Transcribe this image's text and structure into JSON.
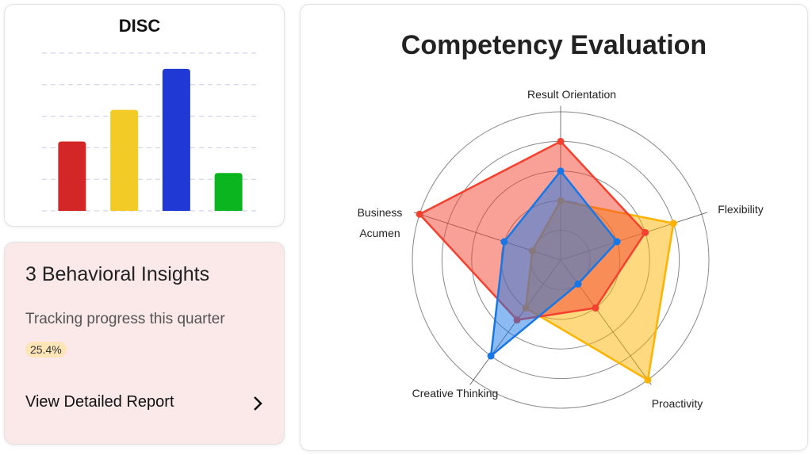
{
  "disc": {
    "chart_data": {
      "type": "bar",
      "title": "DISC",
      "categories": [
        null,
        null,
        null,
        null
      ],
      "values": [
        2.2,
        3.2,
        4.5,
        1.2
      ],
      "colors": [
        "#d32626",
        "#f2cb27",
        "#2139d4",
        "#0bb520"
      ],
      "ylim": [
        0,
        5
      ],
      "yticks": [
        0,
        1,
        2,
        3,
        4,
        5
      ],
      "grid": true
    }
  },
  "insights": {
    "title": "3 Behavioral Insights",
    "subtitle": "Tracking progress this quarter",
    "badge": "25.4%",
    "link": "View Detailed Report"
  },
  "competency": {
    "chart_data": {
      "type": "radar",
      "title": "Competency Evaluation",
      "categories": [
        "Result Orientation",
        "Flexibility",
        "Proactivity",
        "Creative Thinking",
        "Business Acumen"
      ],
      "rlim": [
        0,
        5
      ],
      "rticks": [
        1,
        2,
        3,
        4,
        5
      ],
      "series": [
        {
          "color": "#ffb300",
          "values": [
            2,
            4,
            5,
            2,
            1
          ]
        },
        {
          "color": "#f4412f",
          "values": [
            4,
            3,
            2,
            2.5,
            5
          ]
        },
        {
          "color": "#1877e6",
          "values": [
            3,
            2,
            1,
            4,
            2
          ]
        }
      ]
    }
  }
}
